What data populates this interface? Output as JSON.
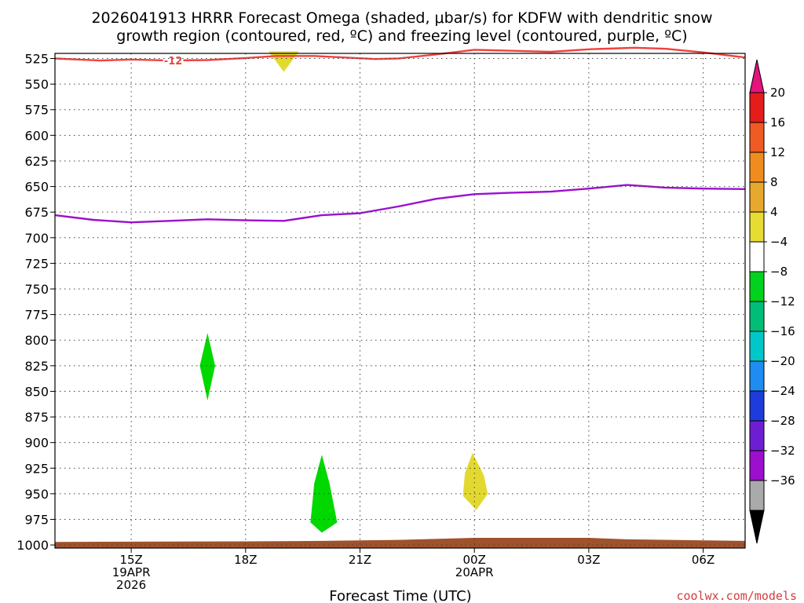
{
  "chart_data": {
    "type": "time-height",
    "title_lines": [
      "2026041913 HRRR Forecast Omega (shaded, μbar/s) for KDFW with dendritic snow",
      "growth region (contoured, red, ºC) and freezing level (contoured, purple, ºC)"
    ],
    "xlabel": "Forecast Time (UTC)",
    "ylabel": "",
    "credit": "coolwx.com/models",
    "x_range_hours": [
      13.0,
      31.1
    ],
    "y_range_mb": [
      520,
      1003
    ],
    "y_ticks": [
      525,
      550,
      575,
      600,
      625,
      650,
      675,
      700,
      725,
      750,
      775,
      800,
      825,
      850,
      875,
      900,
      925,
      950,
      975,
      1000
    ],
    "x_ticks": [
      {
        "hour": 15,
        "lines": [
          "15Z",
          "19APR",
          "2026"
        ]
      },
      {
        "hour": 18,
        "lines": [
          "18Z"
        ]
      },
      {
        "hour": 21,
        "lines": [
          "21Z"
        ]
      },
      {
        "hour": 24,
        "lines": [
          "00Z",
          "20APR"
        ]
      },
      {
        "hour": 27,
        "lines": [
          "03Z"
        ]
      },
      {
        "hour": 30,
        "lines": [
          "06Z"
        ]
      }
    ],
    "series": [
      {
        "name": "dendritic snow growth region -12C",
        "color": "#f0413c",
        "label": "-12",
        "label_hour": 16.1,
        "points": [
          [
            13,
            525
          ],
          [
            14.2,
            527
          ],
          [
            15,
            526
          ],
          [
            16,
            527
          ],
          [
            17,
            526.5
          ],
          [
            18,
            524.5
          ],
          [
            18.8,
            522.5
          ],
          [
            19.8,
            522.5
          ],
          [
            21.4,
            525.5
          ],
          [
            22,
            525
          ],
          [
            23,
            521
          ],
          [
            24,
            516.5
          ],
          [
            25,
            517.5
          ],
          [
            26,
            518.5
          ],
          [
            27,
            516
          ],
          [
            28.2,
            514.5
          ],
          [
            29,
            515.5
          ],
          [
            30,
            519
          ],
          [
            31.1,
            524
          ]
        ]
      },
      {
        "name": "freezing level 0C",
        "color": "#9b10cf",
        "points": [
          [
            13,
            678
          ],
          [
            14,
            682.5
          ],
          [
            15,
            685
          ],
          [
            16,
            683.5
          ],
          [
            17,
            682
          ],
          [
            18,
            683
          ],
          [
            19,
            683.5
          ],
          [
            20,
            678
          ],
          [
            21,
            676
          ],
          [
            22,
            669.5
          ],
          [
            23,
            662
          ],
          [
            24,
            657.5
          ],
          [
            25,
            656
          ],
          [
            26,
            655
          ],
          [
            27,
            652
          ],
          [
            28,
            648.5
          ],
          [
            29,
            651
          ],
          [
            30,
            652
          ],
          [
            31.1,
            652.5
          ]
        ]
      }
    ],
    "shaded_areas": [
      {
        "name": "omega -4 to -8",
        "color": "#00d800",
        "points": [
          [
            17,
            793
          ],
          [
            17.2,
            825
          ],
          [
            17,
            859
          ],
          [
            16.8,
            825
          ]
        ]
      },
      {
        "name": "omega -4 to -8",
        "color": "#00d800",
        "points": [
          [
            20,
            912
          ],
          [
            20.2,
            940
          ],
          [
            20.4,
            978
          ],
          [
            20,
            988
          ],
          [
            19.7,
            978
          ],
          [
            19.8,
            940
          ]
        ]
      },
      {
        "name": "omega 4 to 8",
        "color": "#e2d930",
        "points": [
          [
            23.95,
            910
          ],
          [
            24.25,
            932
          ],
          [
            24.35,
            950
          ],
          [
            24.05,
            966
          ],
          [
            23.7,
            952
          ],
          [
            23.75,
            930
          ]
        ]
      },
      {
        "name": "omega 4 to 8",
        "color": "#e2d930",
        "points": [
          [
            18.6,
            518
          ],
          [
            19.4,
            518
          ],
          [
            19,
            538
          ]
        ]
      },
      {
        "name": "terrain",
        "color": "#a0522d",
        "points": [
          [
            13,
            997
          ],
          [
            18,
            996.5
          ],
          [
            20,
            996
          ],
          [
            22,
            995
          ],
          [
            24,
            993
          ],
          [
            27,
            993
          ],
          [
            28,
            994.5
          ],
          [
            31.1,
            996
          ],
          [
            31.1,
            1003
          ],
          [
            13,
            1003
          ]
        ]
      }
    ],
    "colorbar": {
      "labels": [
        "20",
        "16",
        "12",
        "8",
        "4",
        "−4",
        "−8",
        "−12",
        "−16",
        "−20",
        "−24",
        "−28",
        "−32",
        "−36"
      ],
      "colors": [
        "#e41c1c",
        "#f05a23",
        "#f08c1e",
        "#e6a82d",
        "#e6dc32",
        "#ffffff",
        "#00d21e",
        "#00be78",
        "#00c8c8",
        "#1e8cf0",
        "#1e3cdc",
        "#6e1ed2",
        "#9b0fcd",
        "#aaaaaa"
      ],
      "top_color": "#e6127d",
      "bottom_color": "#000000"
    }
  }
}
